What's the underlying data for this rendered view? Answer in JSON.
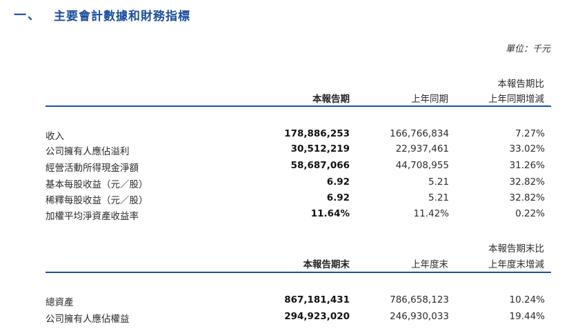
{
  "section": {
    "number": "一、",
    "title": "主要會計數據和財務指標"
  },
  "unit": "單位：千元",
  "table1": {
    "headers": {
      "col1": "本報告期",
      "col2": "上年同期",
      "col3_line1": "本報告期比",
      "col3_line2": "上年同期增減"
    },
    "rows": [
      {
        "label": "收入",
        "current": "178,886,253",
        "prior": "166,766,834",
        "change": "7.27%"
      },
      {
        "label": "公司擁有人應佔溢利",
        "current": "30,512,219",
        "prior": "22,937,461",
        "change": "33.02%"
      },
      {
        "label": "經營活動所得現金淨額",
        "current": "58,687,066",
        "prior": "44,708,955",
        "change": "31.26%"
      },
      {
        "label": "基本每股收益（元／股）",
        "current": "6.92",
        "prior": "5.21",
        "change": "32.82%"
      },
      {
        "label": "稀釋每股收益（元／股）",
        "current": "6.92",
        "prior": "5.21",
        "change": "32.82%"
      },
      {
        "label": "加權平均淨資產收益率",
        "current": "11.64%",
        "prior": "11.42%",
        "change": "0.22%"
      }
    ]
  },
  "table2": {
    "headers": {
      "col1": "本報告期末",
      "col2": "上年度末",
      "col3_line1": "本報告期末比",
      "col3_line2": "上年度末增減"
    },
    "rows": [
      {
        "label": "總資產",
        "current": "867,181,431",
        "prior": "786,658,123",
        "change": "10.24%"
      },
      {
        "label": "公司擁有人應佔權益",
        "current": "294,923,020",
        "prior": "246,930,033",
        "change": "19.44%"
      }
    ]
  },
  "colors": {
    "accent": "#1b4f9c"
  }
}
